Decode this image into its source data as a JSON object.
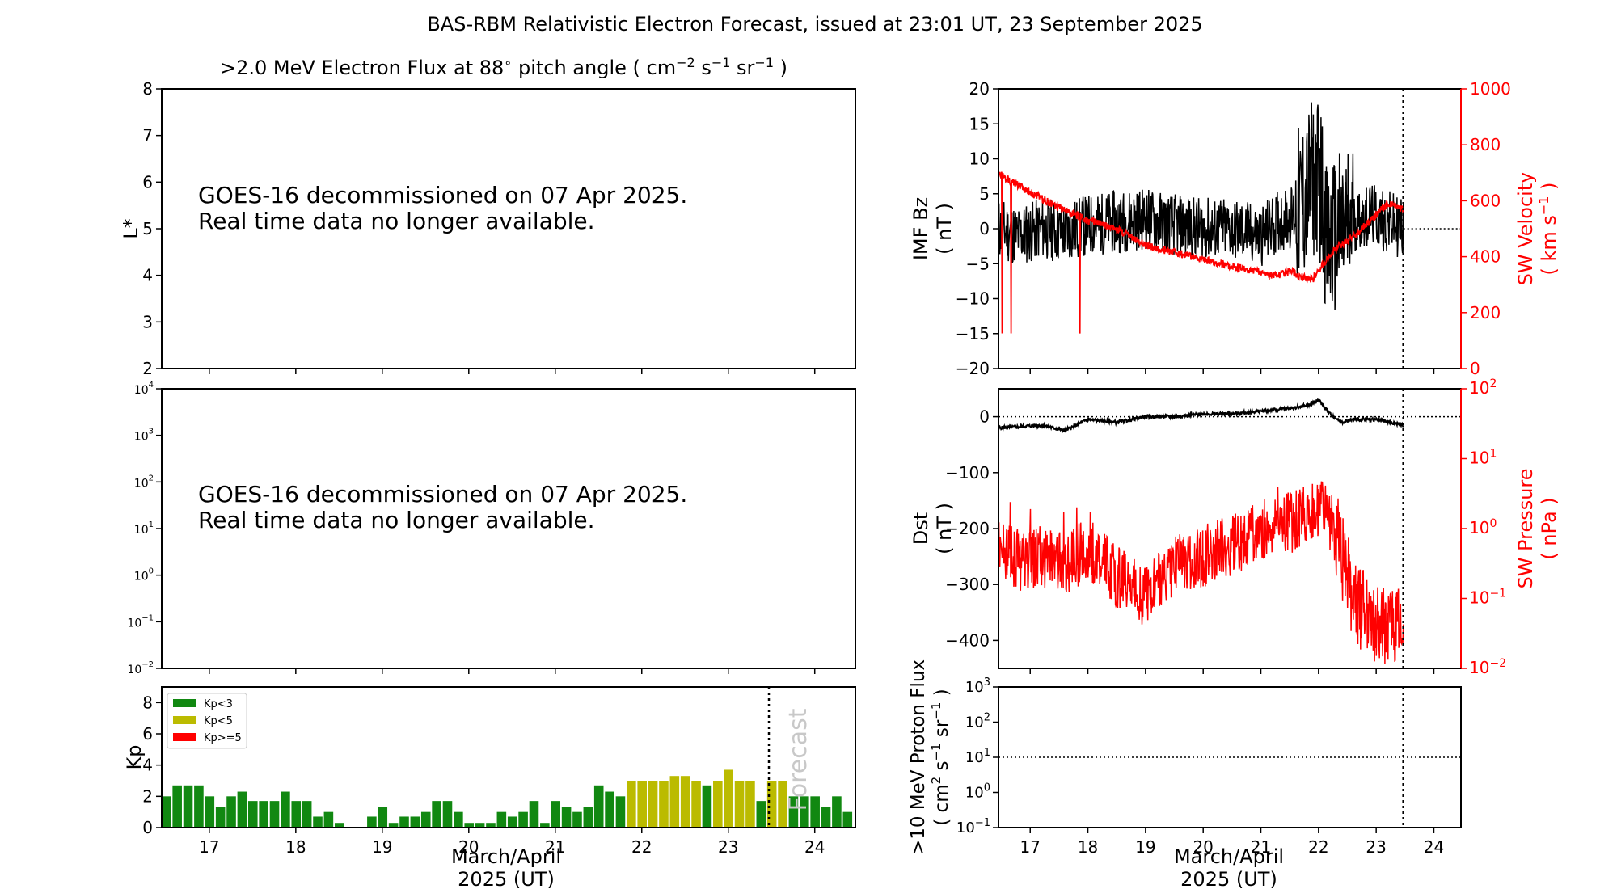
{
  "title": "BAS-RBM Relativistic Electron Forecast, issued at 23:01 UT, 23 September 2025",
  "colors": {
    "black": "#000000",
    "red": "#ff0000",
    "kp_low": "#118811",
    "kp_mid": "#bbbb00",
    "kp_high": "#ff0000",
    "forecast_text": "#c8c8c8"
  },
  "flux_panel": {
    "title": ">2.0 MeV Electron Flux at 88",
    "title_deg": "∘",
    "title_unit_open": "pitch angle ( cm",
    "title_exp1": "−2",
    "title_unit_s": " s",
    "title_exp2": "−1",
    "title_unit_sr": " sr",
    "title_exp3": "−1",
    "title_unit_close": " )",
    "ylabel": "L*",
    "y_ticks": [
      "2",
      "3",
      "4",
      "5",
      "6",
      "7",
      "8"
    ],
    "message_line1": "GOES-16 decommissioned on 07 Apr 2025.",
    "message_line2": "Real time data no longer available."
  },
  "goes_panel": {
    "y_ticks": [
      [
        "10",
        "−2"
      ],
      [
        "10",
        "−1"
      ],
      [
        "10",
        "0"
      ],
      [
        "10",
        "1"
      ],
      [
        "10",
        "2"
      ],
      [
        "10",
        "3"
      ],
      [
        "10",
        "4"
      ]
    ],
    "message_line1": "GOES-16 decommissioned on 07 Apr 2025.",
    "message_line2": "Real time data no longer available."
  },
  "kp_panel": {
    "ylabel": "Kp",
    "y_ticks": [
      "0",
      "2",
      "4",
      "6",
      "8"
    ],
    "legend": [
      {
        "label": "Kp<3",
        "color": "#118811"
      },
      {
        "label": "Kp<5",
        "color": "#bbbb00"
      },
      {
        "label": "Kp>=5",
        "color": "#ff0000"
      }
    ],
    "forecast_label": "Forecast",
    "x_ticks": [
      "17",
      "18",
      "19",
      "20",
      "21",
      "22",
      "23",
      "24"
    ],
    "xlabel_line1": "March/April",
    "xlabel_line2": "2025 (UT)"
  },
  "imf_panel": {
    "ylabel_line1": "IMF Bz",
    "ylabel_line2": "( nT )",
    "y_ticks": [
      "−20",
      "−15",
      "−10",
      "−5",
      "0",
      "5",
      "10",
      "15",
      "20"
    ],
    "right_ylabel_line1": "SW Velocity",
    "right_ylabel_line2": "( km s",
    "right_ylabel_exp": "−1",
    "right_ylabel_close": " )",
    "right_ticks": [
      "0",
      "200",
      "400",
      "600",
      "800",
      "1000"
    ]
  },
  "dst_panel": {
    "ylabel_line1": "Dst",
    "ylabel_line2": "( nT )",
    "y_ticks": [
      "−400",
      "−300",
      "−200",
      "−100",
      "0"
    ],
    "right_ylabel_line1": "SW Pressure",
    "right_ylabel_line2": "( nPa )",
    "right_ticks": [
      [
        "10",
        "−2"
      ],
      [
        "10",
        "−1"
      ],
      [
        "10",
        "0"
      ],
      [
        "10",
        "1"
      ],
      [
        "10",
        "2"
      ]
    ]
  },
  "proton_panel": {
    "ylabel_line1": ">10 MeV Proton Flux",
    "ylabel_line2a": "( cm",
    "ylabel_exp1": "2",
    "ylabel_line2b": " s",
    "ylabel_exp2": "−1",
    "ylabel_line2c": " sr",
    "ylabel_exp3": "−1",
    "ylabel_line2d": " )",
    "y_ticks": [
      [
        "10",
        "−1"
      ],
      [
        "10",
        "0"
      ],
      [
        "10",
        "1"
      ],
      [
        "10",
        "2"
      ],
      [
        "10",
        "3"
      ]
    ],
    "x_ticks": [
      "17",
      "18",
      "19",
      "20",
      "21",
      "22",
      "23",
      "24"
    ],
    "xlabel_line1": "March/April",
    "xlabel_line2": "2025 (UT)"
  },
  "chart_data": [
    {
      "type": "bar",
      "name": "Kp index",
      "x_range_days": [
        16.45,
        24.47
      ],
      "ylim": [
        0,
        9
      ],
      "ylabel": "Kp",
      "xlabel": "March/April 2025 (UT)",
      "bar_width_hours": 2.6,
      "forecast_start_day": 23.47,
      "values": [
        2.0,
        2.7,
        2.7,
        2.7,
        2.0,
        1.3,
        2.0,
        2.3,
        1.7,
        1.7,
        1.7,
        2.3,
        1.7,
        1.7,
        0.7,
        1.0,
        0.3,
        0.0,
        0.0,
        0.7,
        1.3,
        0.3,
        0.7,
        0.7,
        1.0,
        1.7,
        1.7,
        1.0,
        0.3,
        0.3,
        0.3,
        1.0,
        0.7,
        1.0,
        1.7,
        0.3,
        1.7,
        1.3,
        1.0,
        1.3,
        2.7,
        2.3,
        2.0,
        3.0,
        3.0,
        3.0,
        3.0,
        3.3,
        3.3,
        3.0,
        2.7,
        3.0,
        3.7,
        3.0,
        3.0,
        1.7,
        3.0,
        3.0,
        2.0,
        2.0,
        2.0,
        1.3,
        2.0,
        1.0
      ]
    },
    {
      "type": "line",
      "name": "IMF Bz and SW Velocity",
      "x_range_days": [
        16.45,
        24.47
      ],
      "series": [
        {
          "name": "IMF Bz (nT)",
          "color": "#000000",
          "ylim": [
            -20,
            20
          ],
          "x": [
            16.45,
            16.8,
            17.2,
            17.6,
            18.0,
            18.5,
            19.0,
            19.5,
            20.0,
            20.5,
            21.0,
            21.3,
            21.6,
            21.8,
            21.95,
            22.05,
            22.15,
            22.3,
            22.6,
            22.9,
            23.2,
            23.47
          ],
          "y": [
            0,
            -1,
            0,
            -0.5,
            0.5,
            1,
            1.5,
            0.5,
            0,
            0,
            -1,
            1,
            2,
            5,
            8,
            6,
            -3,
            -1,
            1,
            2,
            1,
            0
          ]
        },
        {
          "name": "SW Velocity (km s-1)",
          "color": "#ff0000",
          "ylim": [
            0,
            1000
          ],
          "x": [
            16.45,
            16.7,
            17.0,
            17.5,
            18.0,
            18.5,
            19.0,
            19.5,
            20.0,
            20.5,
            21.0,
            21.3,
            21.5,
            21.7,
            21.9,
            22.1,
            22.3,
            22.6,
            22.9,
            23.2,
            23.47
          ],
          "y": [
            700,
            665,
            630,
            575,
            530,
            500,
            440,
            415,
            390,
            365,
            345,
            330,
            350,
            330,
            320,
            380,
            430,
            470,
            530,
            590,
            570
          ]
        }
      ]
    },
    {
      "type": "line",
      "name": "Dst and SW Pressure",
      "x_range_days": [
        16.45,
        24.47
      ],
      "series": [
        {
          "name": "Dst (nT)",
          "color": "#000000",
          "ylim": [
            -450,
            50
          ],
          "x": [
            16.45,
            16.8,
            17.2,
            17.6,
            18.0,
            18.5,
            19.0,
            19.5,
            20.0,
            20.5,
            21.0,
            21.5,
            21.8,
            22.0,
            22.2,
            22.4,
            22.6,
            23.0,
            23.47
          ],
          "y": [
            -20,
            -18,
            -15,
            -25,
            -5,
            -10,
            0,
            0,
            5,
            5,
            10,
            15,
            20,
            30,
            5,
            -10,
            -5,
            -5,
            -15
          ]
        },
        {
          "name": "SW Pressure (nPa)",
          "color": "#ff0000",
          "ylim_log": [
            0.01,
            100
          ],
          "x": [
            16.45,
            16.8,
            17.2,
            17.6,
            18.0,
            18.5,
            19.0,
            19.5,
            20.0,
            20.5,
            21.0,
            21.3,
            21.5,
            21.8,
            22.0,
            22.2,
            22.4,
            22.6,
            22.9,
            23.2,
            23.47
          ],
          "y": [
            0.5,
            0.35,
            0.4,
            0.3,
            0.5,
            0.2,
            0.1,
            0.3,
            0.4,
            0.6,
            0.9,
            1.5,
            1.2,
            1.7,
            2.0,
            1.2,
            0.4,
            0.08,
            0.05,
            0.04,
            0.03
          ]
        }
      ]
    },
    {
      "type": "line",
      "name": ">10 MeV Proton Flux",
      "x_range_days": [
        16.45,
        24.47
      ],
      "ylim_log": [
        0.1,
        1000
      ],
      "threshold": 10,
      "series": []
    }
  ]
}
